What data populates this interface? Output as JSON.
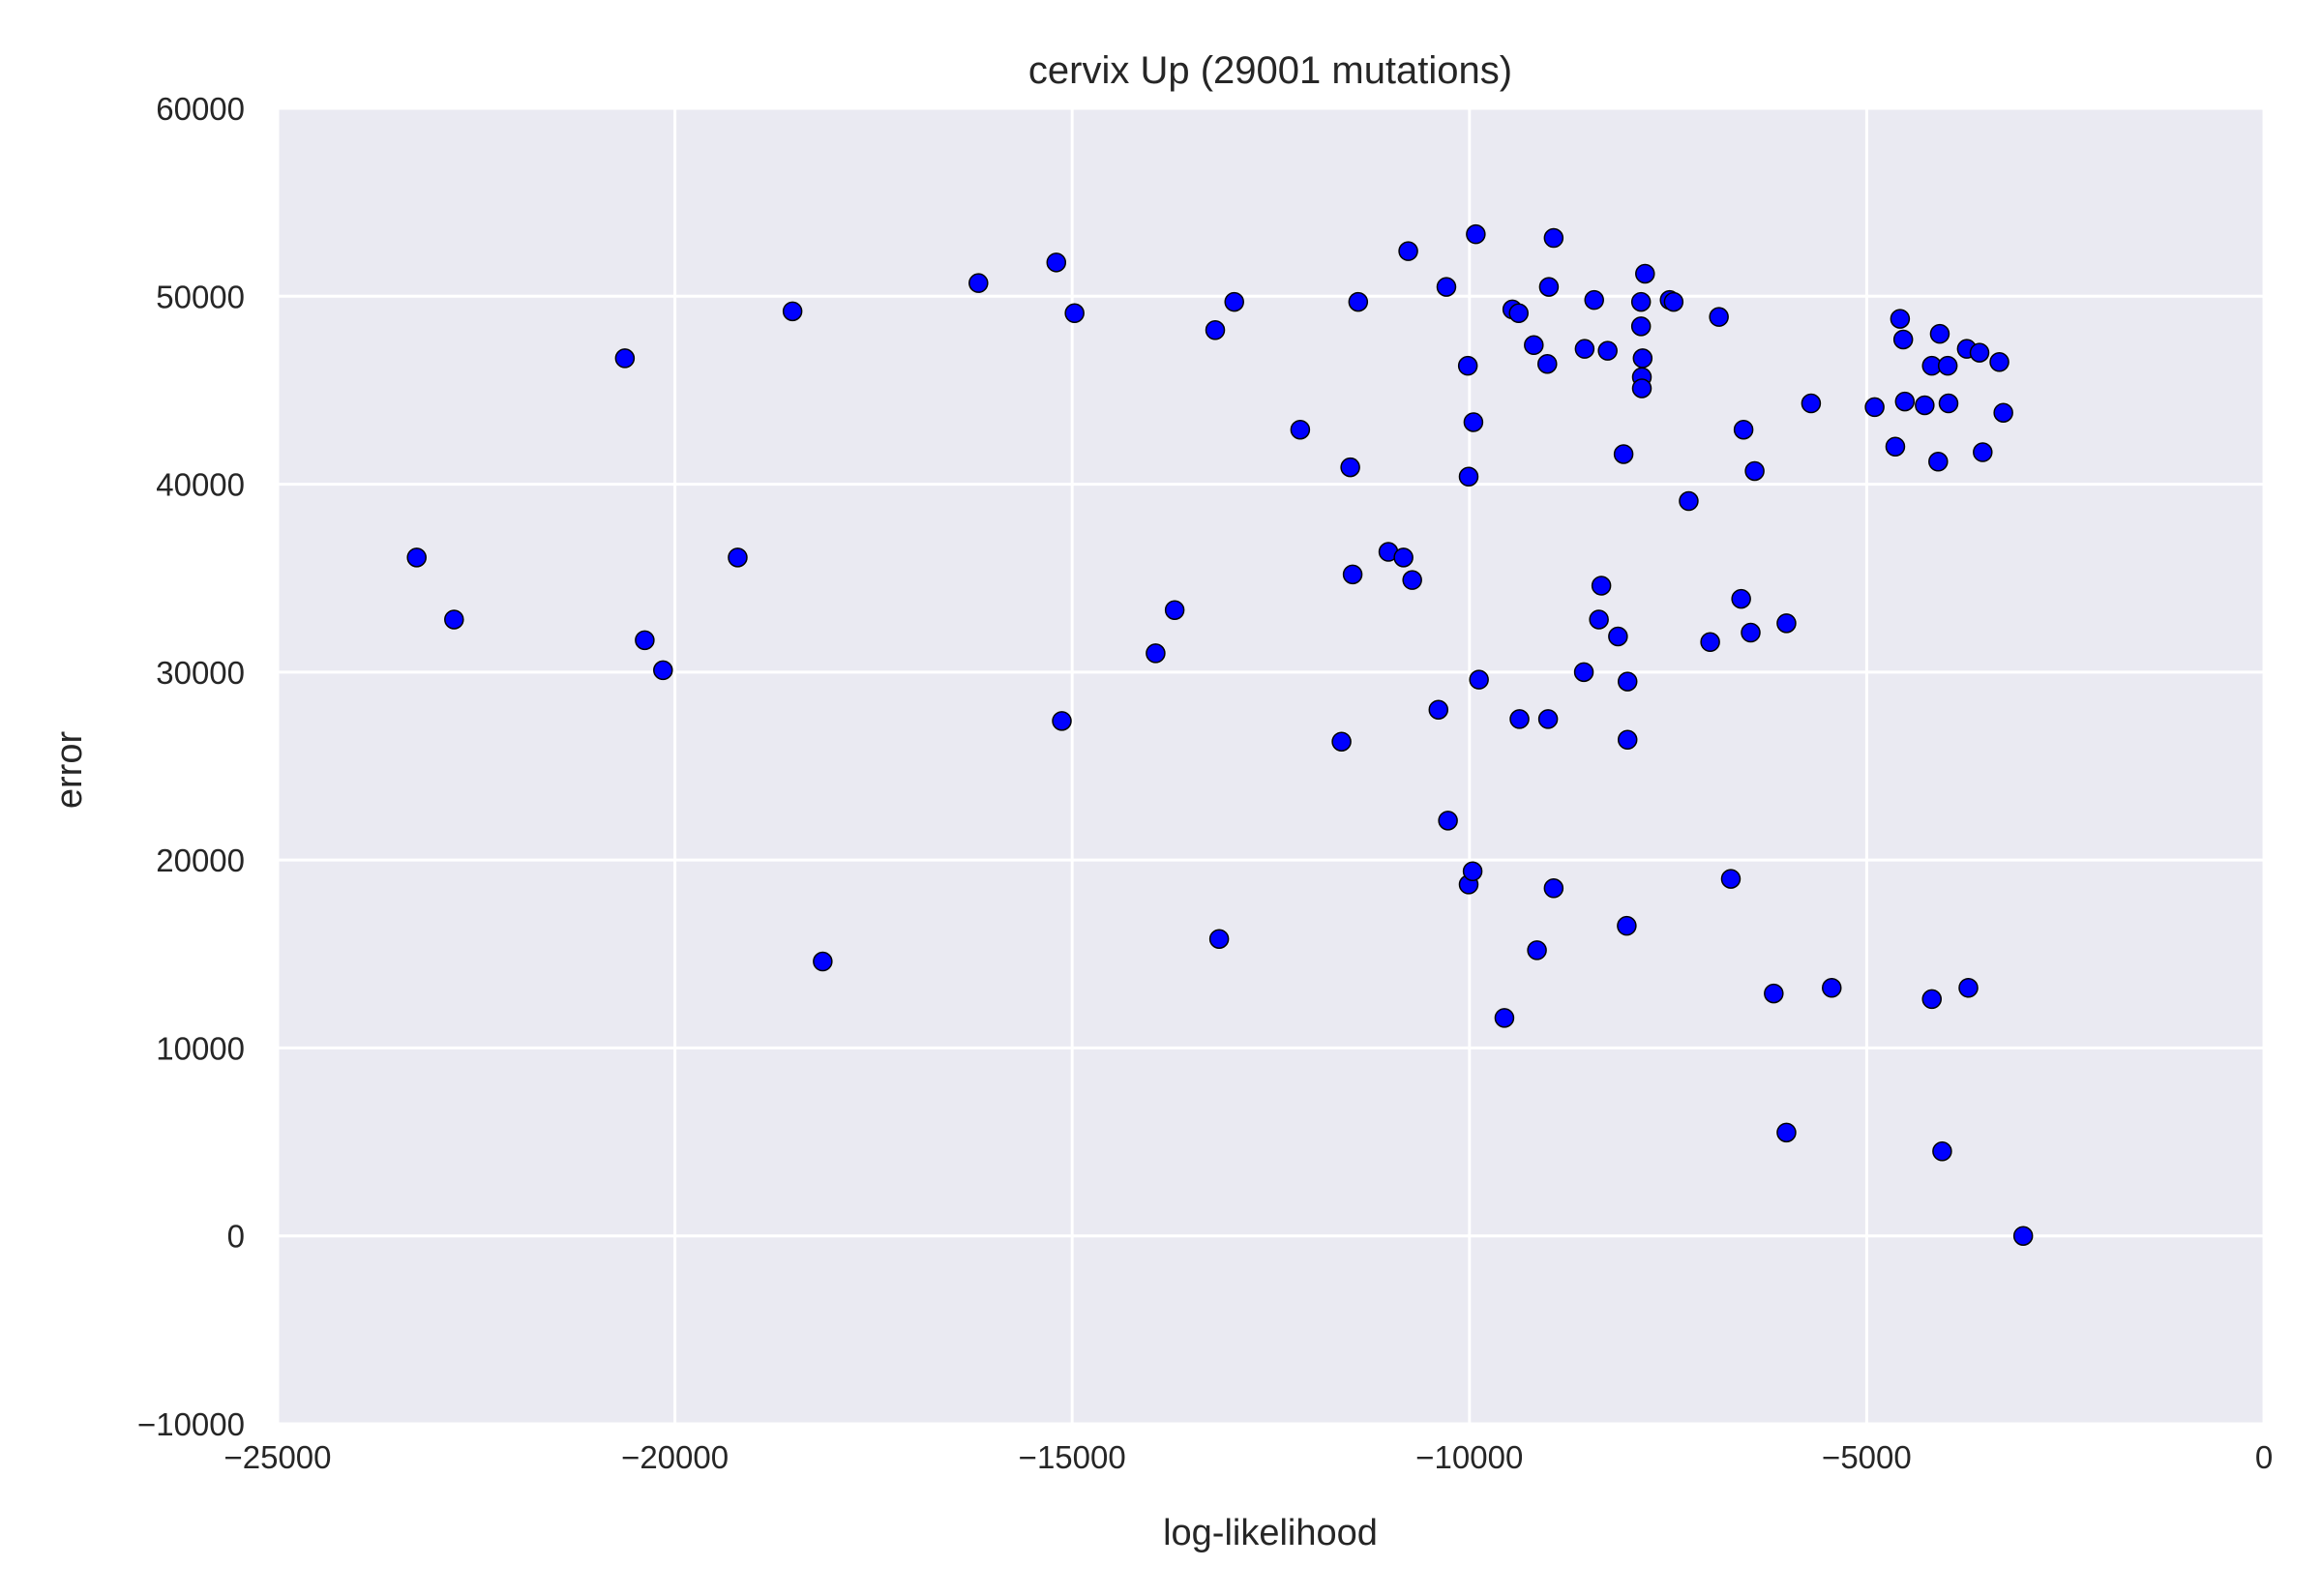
{
  "chart_data": {
    "type": "scatter",
    "title": "cervix Up (29001 mutations)",
    "xlabel": "log-likelihood",
    "ylabel": "error",
    "xlim": [
      -25000,
      0
    ],
    "ylim": [
      -10000,
      60000
    ],
    "xticks": [
      -25000,
      -20000,
      -15000,
      -10000,
      -5000,
      0
    ],
    "yticks": [
      -10000,
      0,
      10000,
      20000,
      30000,
      40000,
      50000,
      60000
    ],
    "xtick_labels": [
      "−25000",
      "−20000",
      "−15000",
      "−10000",
      "−5000",
      "0"
    ],
    "ytick_labels": [
      "−10000",
      "0",
      "10000",
      "20000",
      "30000",
      "40000",
      "50000",
      "60000"
    ],
    "grid": true,
    "background": "#eaeaf2",
    "marker_color": "#0000ff",
    "marker_edge": "#000000",
    "points": [
      [
        -23250,
        36100
      ],
      [
        -22780,
        32800
      ],
      [
        -20630,
        46700
      ],
      [
        -20380,
        31700
      ],
      [
        -20150,
        30100
      ],
      [
        -19210,
        36100
      ],
      [
        -18520,
        49200
      ],
      [
        -18140,
        14600
      ],
      [
        -16180,
        50700
      ],
      [
        -15200,
        51800
      ],
      [
        -15130,
        27400
      ],
      [
        -14970,
        49100
      ],
      [
        -13950,
        31000
      ],
      [
        -13710,
        33300
      ],
      [
        -13200,
        48200
      ],
      [
        -13150,
        15800
      ],
      [
        -12960,
        49700
      ],
      [
        -12130,
        42900
      ],
      [
        -11610,
        26300
      ],
      [
        -11500,
        40900
      ],
      [
        -11470,
        35200
      ],
      [
        -11400,
        49700
      ],
      [
        -11020,
        36400
      ],
      [
        -10830,
        36100
      ],
      [
        -10770,
        52400
      ],
      [
        -10720,
        34900
      ],
      [
        -10390,
        28000
      ],
      [
        -10290,
        50500
      ],
      [
        -10270,
        22100
      ],
      [
        -10020,
        46300
      ],
      [
        -10010,
        40400
      ],
      [
        -10010,
        18700
      ],
      [
        -9960,
        19400
      ],
      [
        -9950,
        43300
      ],
      [
        -9920,
        53300
      ],
      [
        -9880,
        29600
      ],
      [
        -9560,
        11600
      ],
      [
        -9460,
        49300
      ],
      [
        -9380,
        49100
      ],
      [
        -9370,
        27500
      ],
      [
        -9190,
        47400
      ],
      [
        -9150,
        15200
      ],
      [
        -9020,
        46400
      ],
      [
        -9000,
        50500
      ],
      [
        -9010,
        27500
      ],
      [
        -8940,
        53100
      ],
      [
        -8940,
        18500
      ],
      [
        -8560,
        30000
      ],
      [
        -8550,
        47200
      ],
      [
        -8430,
        49800
      ],
      [
        -8370,
        32800
      ],
      [
        -8340,
        34600
      ],
      [
        -8260,
        47100
      ],
      [
        -8130,
        31900
      ],
      [
        -8060,
        41600
      ],
      [
        -8010,
        29500
      ],
      [
        -8010,
        26400
      ],
      [
        -8020,
        16500
      ],
      [
        -7840,
        49700
      ],
      [
        -7840,
        48400
      ],
      [
        -7820,
        46700
      ],
      [
        -7830,
        45700
      ],
      [
        -7830,
        45100
      ],
      [
        -7790,
        51200
      ],
      [
        -7480,
        49800
      ],
      [
        -7430,
        49700
      ],
      [
        -7240,
        39100
      ],
      [
        -6970,
        31600
      ],
      [
        -6860,
        48900
      ],
      [
        -6710,
        19000
      ],
      [
        -6580,
        33900
      ],
      [
        -6550,
        42900
      ],
      [
        -6460,
        32100
      ],
      [
        -6410,
        40700
      ],
      [
        -6170,
        12900
      ],
      [
        -6010,
        32600
      ],
      [
        -6010,
        5500
      ],
      [
        -5700,
        44300
      ],
      [
        -5440,
        13200
      ],
      [
        -4900,
        44100
      ],
      [
        -4640,
        42000
      ],
      [
        -4580,
        48800
      ],
      [
        -4540,
        47700
      ],
      [
        -4520,
        44400
      ],
      [
        -4270,
        44200
      ],
      [
        -4180,
        46300
      ],
      [
        -4180,
        12600
      ],
      [
        -4100,
        41200
      ],
      [
        -4080,
        48000
      ],
      [
        -4050,
        4500
      ],
      [
        -3980,
        46300
      ],
      [
        -3970,
        44300
      ],
      [
        -3740,
        47200
      ],
      [
        -3720,
        13200
      ],
      [
        -3580,
        47000
      ],
      [
        -3540,
        41700
      ],
      [
        -3330,
        46500
      ],
      [
        -3280,
        43800
      ],
      [
        -3030,
        0
      ]
    ]
  }
}
